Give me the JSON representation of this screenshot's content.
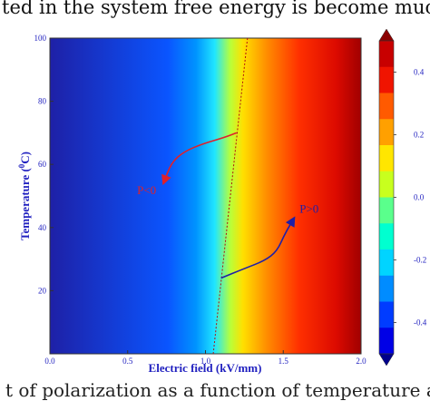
{
  "text": {
    "top_caption": "ted in the system free energy is become much smaller",
    "bottom_caption": "t of polarization as a function of temperature and ele"
  },
  "chart_data": {
    "type": "heatmap",
    "title": "",
    "xlabel": "Electric field (kV/mm)",
    "ylabel": "Temperature (°C)",
    "ylabel_parts": {
      "pre": "Temperature (",
      "sup": "0",
      "post": "C)"
    },
    "xlim": [
      0.0,
      2.0
    ],
    "ylim": [
      0,
      100
    ],
    "xticks": [
      "0.0",
      "0.5",
      "1.0",
      "1.5",
      "2.0"
    ],
    "yticks": [
      "20",
      "40",
      "60",
      "80",
      "100"
    ],
    "colorbar": {
      "ticks": [
        "-0.4",
        "-0.2",
        "0.0",
        "0.2",
        "0.4"
      ],
      "range": [
        -0.5,
        0.5
      ],
      "colors": [
        "#00008b",
        "#0000e6",
        "#003cff",
        "#008cff",
        "#00d4ff",
        "#00ffd0",
        "#5aff8c",
        "#c8ff1e",
        "#ffe600",
        "#ffa000",
        "#ff5a00",
        "#f01400",
        "#c80000",
        "#8b0000"
      ]
    },
    "boundary_line": {
      "x": [
        1.05,
        1.27
      ],
      "y": [
        0,
        100
      ],
      "color": "#b01010"
    },
    "annotations": [
      {
        "label": "P<0",
        "color": "#e0202a",
        "curve": [
          [
            1.2,
            70
          ],
          [
            1.12,
            68.5
          ],
          [
            0.98,
            66.5
          ],
          [
            0.86,
            64
          ],
          [
            0.78,
            60.5
          ],
          [
            0.73,
            54
          ]
        ]
      },
      {
        "label": "P>0",
        "color": "#1f1fa8",
        "curve": [
          [
            1.1,
            24
          ],
          [
            1.25,
            27
          ],
          [
            1.38,
            29.5
          ],
          [
            1.46,
            32.5
          ],
          [
            1.51,
            38
          ],
          [
            1.57,
            43
          ]
        ]
      }
    ]
  }
}
